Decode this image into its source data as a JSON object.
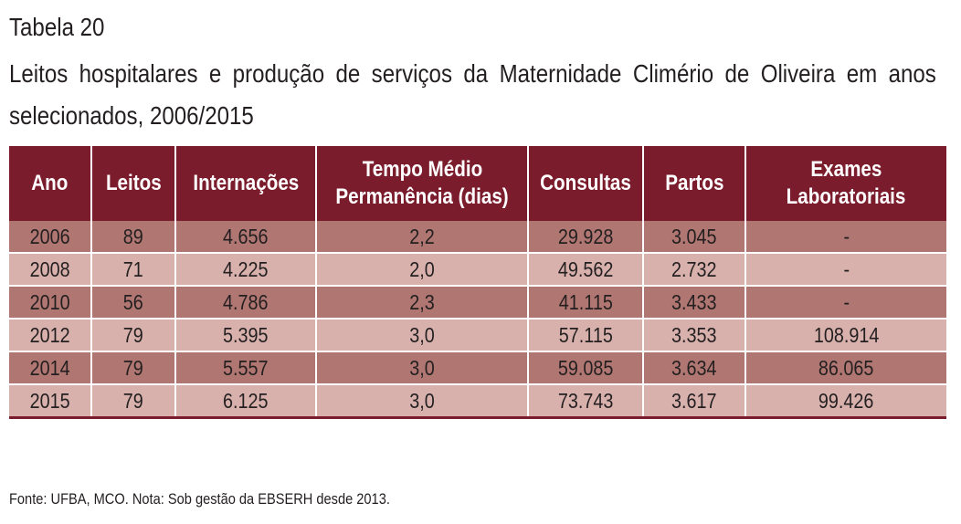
{
  "document": {
    "label": "Tabela 20",
    "title": "Leitos hospitalares e produção de serviços da Maternidade Climério de Oliveira em anos selecionados, 2006/2015",
    "source": "Fonte: UFBA, MCO. Nota: Sob gestão da EBSERH desde 2013."
  },
  "table": {
    "headers": {
      "ano": "Ano",
      "leitos": "Leitos",
      "internacoes": "Internações",
      "tempo_1": "Tempo Médio",
      "tempo_2": "Permanência (dias)",
      "consultas": "Consultas",
      "partos": "Partos",
      "exames_1": "Exames",
      "exames_2": "Laboratoriais"
    },
    "rows": [
      {
        "ano": "2006",
        "leitos": "89",
        "internacoes": "4.656",
        "tempo": "2,2",
        "consultas": "29.928",
        "partos": "3.045",
        "exames": "-"
      },
      {
        "ano": "2008",
        "leitos": "71",
        "internacoes": "4.225",
        "tempo": "2,0",
        "consultas": "49.562",
        "partos": "2.732",
        "exames": "-"
      },
      {
        "ano": "2010",
        "leitos": "56",
        "internacoes": "4.786",
        "tempo": "2,3",
        "consultas": "41.115",
        "partos": "3.433",
        "exames": "-"
      },
      {
        "ano": "2012",
        "leitos": "79",
        "internacoes": "5.395",
        "tempo": "3,0",
        "consultas": "57.115",
        "partos": "3.353",
        "exames": "108.914"
      },
      {
        "ano": "2014",
        "leitos": "79",
        "internacoes": "5.557",
        "tempo": "3,0",
        "consultas": "59.085",
        "partos": "3.634",
        "exames": "86.065"
      },
      {
        "ano": "2015",
        "leitos": "79",
        "internacoes": "6.125",
        "tempo": "3,0",
        "consultas": "73.743",
        "partos": "3.617",
        "exames": "99.426"
      }
    ]
  },
  "colors": {
    "header_bg": "#7b1c2c",
    "row_dark": "#b07671",
    "row_light": "#d8b1ad",
    "text": "#231f20"
  }
}
